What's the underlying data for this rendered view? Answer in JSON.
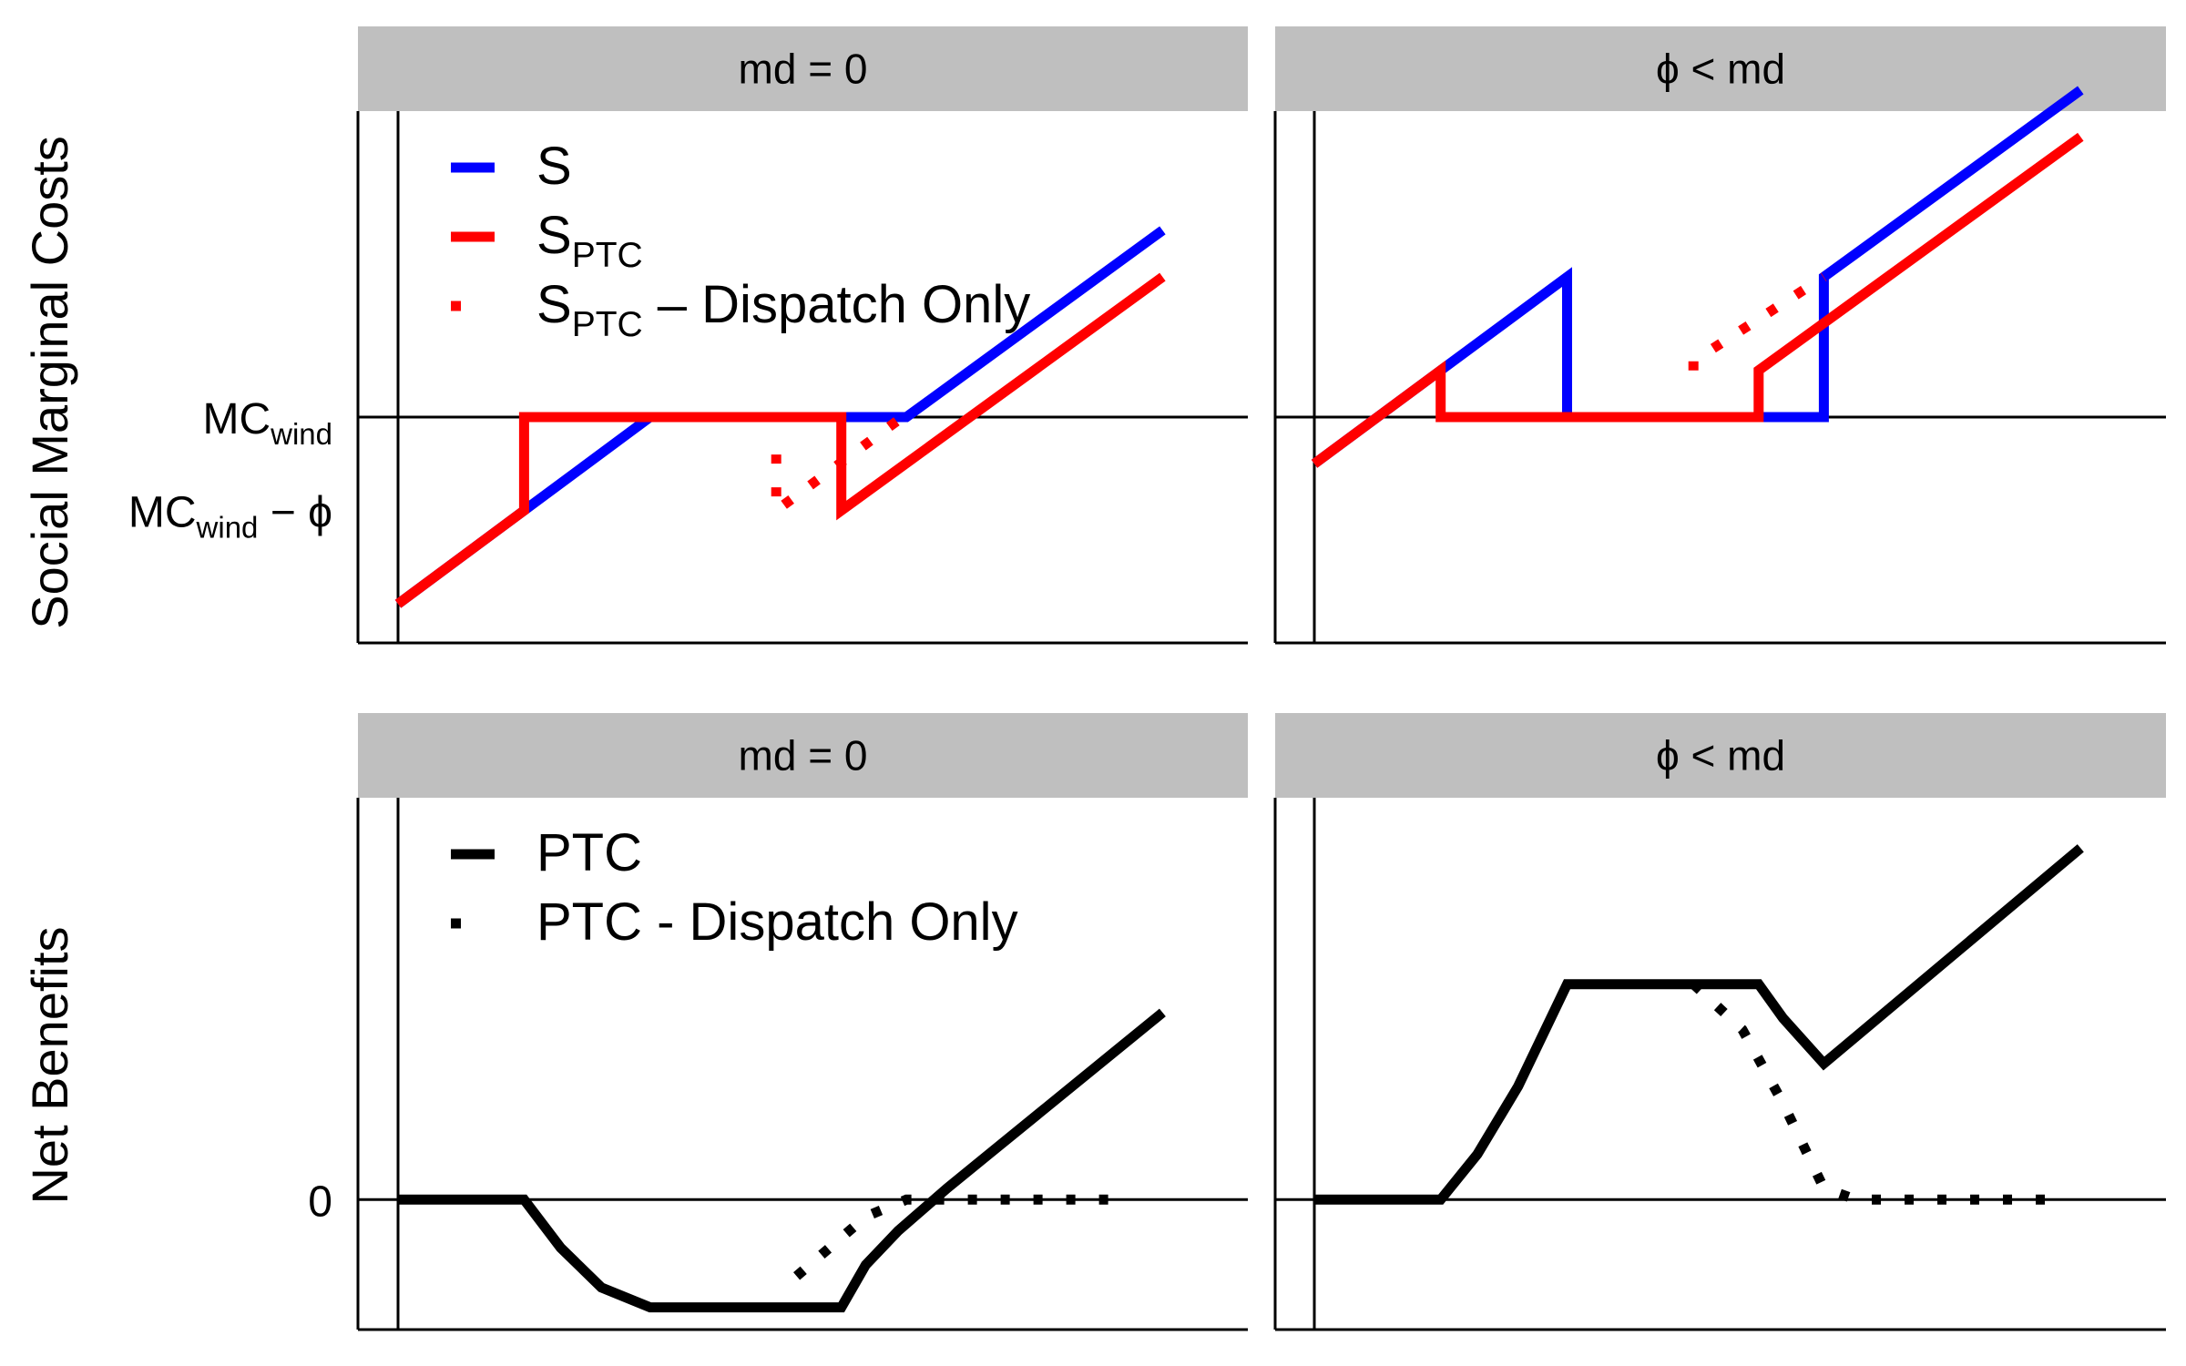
{
  "figure": {
    "row_labels": [
      "Social Marginal Costs",
      "Net Benefits"
    ]
  },
  "chart_data": [
    {
      "type": "line",
      "facet": "md = 0",
      "ylabel": "Social Marginal Costs",
      "xlim": [
        0,
        20
      ],
      "ylim": [
        -2.6,
        8.2
      ],
      "y_tick_labels": [
        {
          "base": "MC",
          "sub": "wind",
          "tail": "",
          "y": 2
        },
        {
          "base": "MC",
          "sub": "wind",
          "tail": " − ϕ",
          "y": 0
        }
      ],
      "hline": 2,
      "legend": {
        "placement": "top-left",
        "entries": [
          {
            "base": "S",
            "sub": "",
            "tail": "",
            "color": "#0000ff",
            "style": "solid"
          },
          {
            "base": "S",
            "sub": "PTC",
            "tail": "",
            "color": "#ff0000",
            "style": "solid"
          },
          {
            "base": "S",
            "sub": "PTC",
            "tail": " – Dispatch Only",
            "color": "#ff0000",
            "style": "dotted"
          }
        ]
      },
      "series": [
        {
          "name": "S",
          "color": "#0000ff",
          "style": "solid",
          "x": [
            0,
            3.1,
            6.2,
            10.9,
            12.5,
            18.8
          ],
          "y": [
            -2,
            0,
            2,
            2,
            2,
            6
          ]
        },
        {
          "name": "S_PTC",
          "color": "#ff0000",
          "style": "solid",
          "x": [
            0,
            3.1,
            3.1,
            10.9,
            10.9,
            18.8
          ],
          "y": [
            -2,
            0,
            2,
            2,
            0,
            5
          ]
        },
        {
          "name": "S_PTC – Dispatch Only",
          "color": "#ff0000",
          "style": "dotted",
          "x": [
            9.3,
            9.3,
            9.3,
            12.4
          ],
          "y": [
            1.2,
            0.8,
            0,
            2
          ]
        }
      ]
    },
    {
      "type": "line",
      "facet": "ϕ < md",
      "xlim": [
        0,
        20
      ],
      "ylim": [
        -2.6,
        8.2
      ],
      "hline": 2,
      "series": [
        {
          "name": "S",
          "color": "#0000ff",
          "style": "solid",
          "x": [
            0,
            3.1,
            6.2,
            6.2,
            12.5,
            12.5,
            18.8
          ],
          "y": [
            1,
            3,
            5,
            2,
            2,
            5,
            9
          ]
        },
        {
          "name": "S_PTC",
          "color": "#ff0000",
          "style": "solid",
          "x": [
            0,
            3.1,
            3.1,
            10.9,
            10.9,
            18.8
          ],
          "y": [
            1,
            3,
            2,
            2,
            3,
            8
          ]
        },
        {
          "name": "S_PTC – Dispatch Only",
          "color": "#ff0000",
          "style": "dotted",
          "x": [
            9.3,
            9.3,
            12.5
          ],
          "y": [
            3,
            3.2,
            5
          ]
        }
      ]
    },
    {
      "type": "line",
      "facet": "md = 0",
      "ylabel": "Net Benefits",
      "xlim": [
        0,
        20
      ],
      "ylim": [
        -2.1,
        6.8
      ],
      "y_tick_labels": [
        {
          "base": "0",
          "sub": "",
          "tail": "",
          "y": 0
        }
      ],
      "hline": 0,
      "legend": {
        "placement": "top-left",
        "entries": [
          {
            "base": "PTC",
            "sub": "",
            "tail": "",
            "color": "#000000",
            "style": "solid"
          },
          {
            "base": "PTC - Dispatch Only",
            "sub": "",
            "tail": "",
            "color": "#000000",
            "style": "dotted"
          }
        ]
      },
      "series": [
        {
          "name": "PTC",
          "color": "#000000",
          "style": "solid",
          "x": [
            0,
            3.1,
            4.0,
            5.0,
            6.2,
            9.5,
            10.9,
            11.5,
            12.3,
            13.5,
            18.8
          ],
          "y": [
            0,
            0,
            -0.85,
            -1.55,
            -1.9,
            -1.9,
            -1.9,
            -1.15,
            -0.55,
            0.2,
            3.3
          ]
        },
        {
          "name": "PTC - Dispatch Only",
          "color": "#000000",
          "style": "dotted",
          "x": [
            9.8,
            11.5,
            12.5,
            13.5,
            18.0
          ],
          "y": [
            -1.35,
            -0.3,
            0,
            0,
            0
          ]
        }
      ]
    },
    {
      "type": "line",
      "facet": "ϕ < md",
      "xlim": [
        0,
        20
      ],
      "ylim": [
        -2.1,
        6.8
      ],
      "hline": 0,
      "series": [
        {
          "name": "PTC",
          "color": "#000000",
          "style": "solid",
          "x": [
            0,
            3.1,
            4.0,
            5.0,
            6.2,
            10.9,
            11.5,
            12.5,
            18.8
          ],
          "y": [
            0,
            0,
            0.8,
            2.0,
            3.8,
            3.8,
            3.2,
            2.4,
            6.2
          ]
        },
        {
          "name": "PTC - Dispatch Only",
          "color": "#000000",
          "style": "dotted",
          "x": [
            9.3,
            10.5,
            11.5,
            12.5,
            13.3,
            18.0
          ],
          "y": [
            3.8,
            3.0,
            1.7,
            0.2,
            0,
            0
          ]
        }
      ]
    }
  ]
}
